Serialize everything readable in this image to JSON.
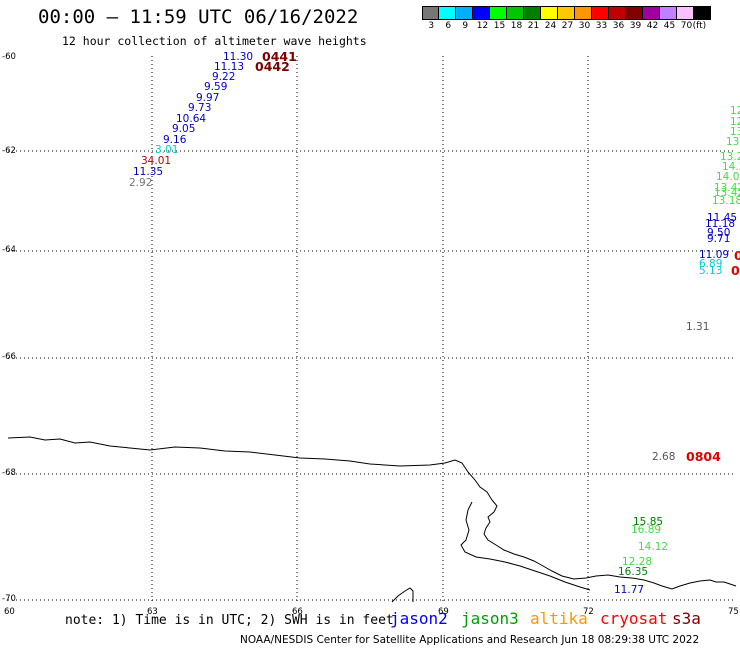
{
  "title": "00:00 – 11:59 UTC 06/16/2022",
  "subtitle": "12 hour collection of altimeter wave heights",
  "legend": {
    "colors": [
      "#777777",
      "#00ffff",
      "#00b0ff",
      "#0000ff",
      "#00ff00",
      "#00c800",
      "#008000",
      "#ffff00",
      "#ffc800",
      "#ff9600",
      "#ff0000",
      "#c00000",
      "#800000",
      "#a000a0",
      "#c080ff",
      "#ffc0ff",
      "#000000"
    ],
    "labels": [
      "3",
      "6",
      "9",
      "12",
      "15",
      "18",
      "21",
      "24",
      "27",
      "30",
      "33",
      "36",
      "39",
      "42",
      "45",
      "70",
      "(ft)"
    ]
  },
  "axes": {
    "lat_labels": [
      "-60",
      "-62",
      "-64",
      "-66",
      "-68",
      "-70"
    ],
    "lon_labels": [
      "60",
      "63",
      "66",
      "69",
      "72",
      "75"
    ]
  },
  "observations": [
    {
      "text": "11.30",
      "color": "#0000c8"
    },
    {
      "text": "11.13",
      "color": "#0000c8"
    },
    {
      "text": "9.22",
      "color": "#0000c8"
    },
    {
      "text": "9.59",
      "color": "#0000c8"
    },
    {
      "text": "9.97",
      "color": "#0000c8"
    },
    {
      "text": "9.73",
      "color": "#0000c8"
    },
    {
      "text": "10.64",
      "color": "#0000c8"
    },
    {
      "text": "9.05",
      "color": "#0000c8"
    },
    {
      "text": "9.16",
      "color": "#0000c8"
    },
    {
      "text": "3.01",
      "color": "#00d0d0"
    },
    {
      "text": "34.01",
      "color": "#c00000"
    },
    {
      "text": "11.35",
      "color": "#0000c8"
    },
    {
      "text": "2.92",
      "color": "#777777"
    },
    {
      "text": "12",
      "color": "#40e040"
    },
    {
      "text": "12",
      "color": "#40e040"
    },
    {
      "text": "13.",
      "color": "#40e040"
    },
    {
      "text": "13.",
      "color": "#40e040"
    },
    {
      "text": "13.2",
      "color": "#40e040"
    },
    {
      "text": "14.2",
      "color": "#40e040"
    },
    {
      "text": "14.09",
      "color": "#40e040"
    },
    {
      "text": "13.42",
      "color": "#40e040"
    },
    {
      "text": "13.42",
      "color": "#40e040"
    },
    {
      "text": "13.18",
      "color": "#40e040"
    },
    {
      "text": "11.45",
      "color": "#0000c8"
    },
    {
      "text": "11.18",
      "color": "#0000c8"
    },
    {
      "text": "9.50",
      "color": "#0000c8"
    },
    {
      "text": "9.71",
      "color": "#0000c8"
    },
    {
      "text": "11.09",
      "color": "#0000c8"
    },
    {
      "text": "6.89",
      "color": "#00d0d0"
    },
    {
      "text": "5.13",
      "color": "#00d0d0"
    },
    {
      "text": "1.31",
      "color": "#555555"
    },
    {
      "text": "2.68",
      "color": "#555555"
    },
    {
      "text": "15.85",
      "color": "#008000"
    },
    {
      "text": "16.89",
      "color": "#40e040"
    },
    {
      "text": "14.12",
      "color": "#40e040"
    },
    {
      "text": "12.28",
      "color": "#40e040"
    },
    {
      "text": "16.35",
      "color": "#008000"
    },
    {
      "text": "11.77",
      "color": "#0000c8"
    }
  ],
  "pass_times": [
    {
      "text": "0441",
      "color": "#800000"
    },
    {
      "text": "0442",
      "color": "#800000"
    },
    {
      "text": "0",
      "color": "#e00000"
    },
    {
      "text": "0",
      "color": "#e00000"
    },
    {
      "text": "0804",
      "color": "#e00000"
    }
  ],
  "note": "note: 1) Time is in UTC; 2) SWH is in feet",
  "satellites": [
    {
      "name": "jason2",
      "color": "#0000ff"
    },
    {
      "name": "jason3",
      "color": "#00a000"
    },
    {
      "name": "altika",
      "color": "#ff9600"
    },
    {
      "name": "cryosat",
      "color": "#ff0000"
    },
    {
      "name": "s3a",
      "color": "#800000"
    }
  ],
  "footer": "NOAA/NESDIS Center for Satellite Applications and Research    Jun 18 08:29:38 UTC 2022"
}
